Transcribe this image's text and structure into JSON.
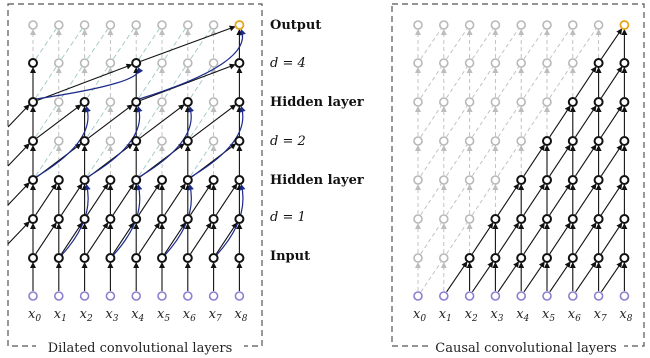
{
  "panels": {
    "left": {
      "caption": "Dilated convolutional layers",
      "row_labels": [
        "Output",
        "d = 4",
        "Hidden layer",
        "d = 2",
        "Hidden layer",
        "d = 1",
        "Input"
      ]
    },
    "right": {
      "caption": "Causal convolutional layers"
    }
  },
  "x_labels": [
    "x0",
    "x1",
    "x2",
    "x3",
    "x4",
    "x5",
    "x6",
    "x7",
    "x8"
  ],
  "colors": {
    "input_node": "#8a7fd0",
    "output_node": "#e8a319",
    "active_node": "#111111",
    "inactive_node": "#b8b8b8",
    "curved_edge": "#1c2a8a"
  }
}
